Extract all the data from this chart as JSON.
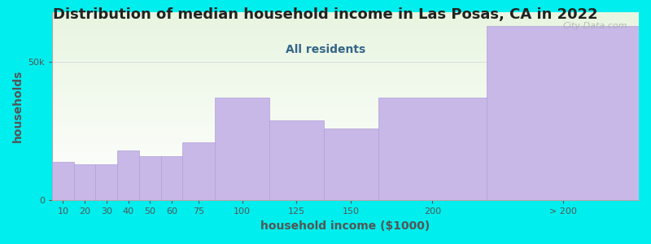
{
  "title": "Distribution of median household income in Las Posas, CA in 2022",
  "subtitle": "All residents",
  "xlabel": "household income ($1000)",
  "ylabel": "households",
  "background_fig": "#00EEEE",
  "background_ax_top": "#e8f5e0",
  "background_ax_bottom": "#ffffff",
  "bar_color": "#c8b8e8",
  "bar_edge_color": "#b0a0d8",
  "widths": [
    10,
    10,
    10,
    10,
    10,
    10,
    15,
    25,
    25,
    25,
    50,
    70
  ],
  "lefts": [
    0,
    10,
    20,
    30,
    40,
    50,
    60,
    75,
    100,
    125,
    150,
    200
  ],
  "values": [
    14000,
    13000,
    13000,
    18000,
    16000,
    16000,
    21000,
    37000,
    29000,
    26000,
    37000,
    63000
  ],
  "ylim": [
    0,
    68000
  ],
  "yticks": [
    0,
    50000
  ],
  "ytick_labels": [
    "0",
    "50k"
  ],
  "xtick_positions": [
    5,
    15,
    25,
    35,
    45,
    55,
    67.5,
    87.5,
    112.5,
    137.5,
    175,
    235
  ],
  "xtick_labels": [
    "10",
    "20",
    "30",
    "40",
    "50",
    "60",
    "75",
    "100",
    "125",
    "150",
    "200",
    "> 200"
  ],
  "title_fontsize": 13,
  "subtitle_fontsize": 10,
  "label_fontsize": 10,
  "watermark": "City-Data.com",
  "title_color": "#222222",
  "subtitle_color": "#336688",
  "tick_color": "#555555",
  "label_color": "#555555",
  "grid_color": "#dddddd",
  "watermark_color": "#aaaaaa"
}
